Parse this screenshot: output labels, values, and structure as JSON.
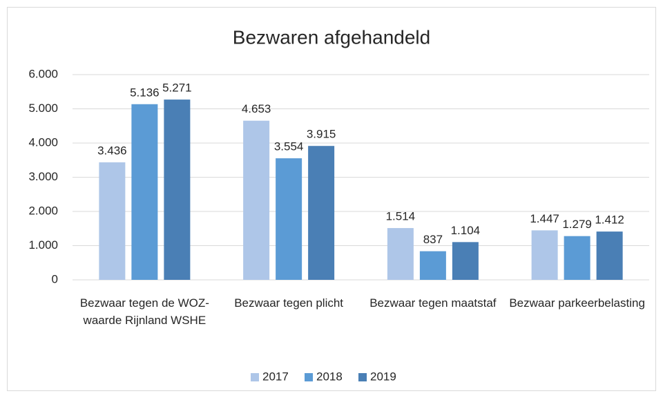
{
  "chart_data": {
    "type": "bar",
    "title": "Bezwaren afgehandeld",
    "categories": [
      "Bezwaar tegen de WOZ-waarde Rijnland WSHE",
      "Bezwaar tegen plicht",
      "Bezwaar tegen maatstaf",
      "Bezwaar parkeerbelasting"
    ],
    "series": [
      {
        "name": "2017",
        "color": "#aec6e8",
        "values": [
          3436,
          4653,
          1514,
          1447
        ],
        "value_labels": [
          "3.436",
          "4.653",
          "1.514",
          "1.447"
        ]
      },
      {
        "name": "2018",
        "color": "#5b9bd5",
        "values": [
          5136,
          3554,
          837,
          1279
        ],
        "value_labels": [
          "5.136",
          "3.554",
          "837",
          "1.279"
        ]
      },
      {
        "name": "2019",
        "color": "#4a7fb5",
        "values": [
          5271,
          3915,
          1104,
          1412
        ],
        "value_labels": [
          "5.271",
          "3.915",
          "1.104",
          "1.412"
        ]
      }
    ],
    "ylim": [
      0,
      6000
    ],
    "yticks": [
      0,
      {
        "value": 1000,
        "label": "1.000"
      },
      {
        "value": 2000,
        "label": "2.000"
      },
      {
        "value": 3000,
        "label": "3.000"
      },
      {
        "value": 4000,
        "label": "4.000"
      },
      {
        "value": 5000,
        "label": "5.000"
      },
      {
        "value": 6000,
        "label": "6.000"
      }
    ],
    "grid": true,
    "legend": "bottom"
  }
}
